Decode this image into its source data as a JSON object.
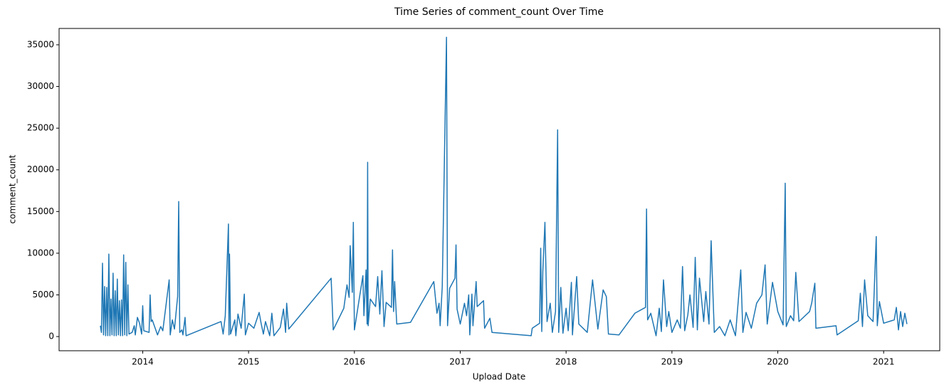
{
  "chart_data": {
    "type": "line",
    "title": "Time Series of comment_count Over Time",
    "x_label": "Upload Date",
    "y_label": "comment_count",
    "xlim": [
      2013.21,
      2021.53
    ],
    "xticks": [
      2014,
      2015,
      2016,
      2017,
      2018,
      2019,
      2020,
      2021
    ],
    "ylim": [
      -1700,
      36960
    ],
    "yticks": [
      0,
      5000,
      10000,
      15000,
      20000,
      25000,
      30000,
      35000
    ],
    "series": [
      {
        "name": "comment_count",
        "color": "#1f77b4",
        "x": [
          2013.6,
          2013.61,
          2013.62,
          2013.63,
          2013.64,
          2013.65,
          2013.66,
          2013.67,
          2013.68,
          2013.69,
          2013.7,
          2013.71,
          2013.72,
          2013.73,
          2013.74,
          2013.75,
          2013.76,
          2013.77,
          2013.78,
          2013.79,
          2013.8,
          2013.81,
          2013.82,
          2013.83,
          2013.84,
          2013.85,
          2013.86,
          2013.87,
          2013.9,
          2013.92,
          2013.93,
          2013.95,
          2013.97,
          2013.99,
          2014.0,
          2014.01,
          2014.06,
          2014.07,
          2014.08,
          2014.09,
          2014.14,
          2014.17,
          2014.19,
          2014.25,
          2014.26,
          2014.28,
          2014.3,
          2014.33,
          2014.34,
          2014.35,
          2014.37,
          2014.38,
          2014.4,
          2014.41,
          2014.74,
          2014.76,
          2014.78,
          2014.81,
          2014.815,
          2014.82,
          2014.83,
          2014.87,
          2014.88,
          2014.9,
          2014.93,
          2014.96,
          2014.97,
          2015.0,
          2015.05,
          2015.1,
          2015.12,
          2015.14,
          2015.16,
          2015.2,
          2015.22,
          2015.24,
          2015.3,
          2015.33,
          2015.35,
          2015.36,
          2015.38,
          2015.78,
          2015.8,
          2015.9,
          2015.93,
          2015.95,
          2015.96,
          2015.98,
          2015.99,
          2016.0,
          2016.08,
          2016.09,
          2016.11,
          2016.12,
          2016.125,
          2016.13,
          2016.15,
          2016.2,
          2016.22,
          2016.24,
          2016.26,
          2016.28,
          2016.3,
          2016.35,
          2016.36,
          2016.37,
          2016.38,
          2016.4,
          2016.53,
          2016.75,
          2016.78,
          2016.8,
          2016.81,
          2016.83,
          2016.87,
          2016.88,
          2016.9,
          2016.95,
          2016.96,
          2016.97,
          2017.0,
          2017.04,
          2017.06,
          2017.08,
          2017.09,
          2017.11,
          2017.12,
          2017.15,
          2017.16,
          2017.22,
          2017.23,
          2017.28,
          2017.3,
          2017.67,
          2017.68,
          2017.75,
          2017.76,
          2017.77,
          2017.78,
          2017.8,
          2017.82,
          2017.85,
          2017.87,
          2017.9,
          2017.92,
          2017.93,
          2017.95,
          2017.97,
          2018.0,
          2018.02,
          2018.05,
          2018.06,
          2018.1,
          2018.12,
          2018.2,
          2018.25,
          2018.3,
          2018.35,
          2018.38,
          2018.4,
          2018.5,
          2018.65,
          2018.75,
          2018.76,
          2018.77,
          2018.8,
          2018.85,
          2018.88,
          2018.9,
          2018.92,
          2018.95,
          2018.97,
          2019.0,
          2019.05,
          2019.08,
          2019.1,
          2019.12,
          2019.15,
          2019.17,
          2019.2,
          2019.22,
          2019.24,
          2019.26,
          2019.3,
          2019.32,
          2019.35,
          2019.37,
          2019.4,
          2019.45,
          2019.5,
          2019.55,
          2019.6,
          2019.65,
          2019.67,
          2019.7,
          2019.75,
          2019.8,
          2019.85,
          2019.88,
          2019.9,
          2019.95,
          2020.0,
          2020.05,
          2020.07,
          2020.08,
          2020.12,
          2020.15,
          2020.17,
          2020.2,
          2020.3,
          2020.32,
          2020.35,
          2020.36,
          2020.55,
          2020.56,
          2020.76,
          2020.78,
          2020.8,
          2020.82,
          2020.85,
          2020.9,
          2020.93,
          2020.94,
          2020.96,
          2021.0,
          2021.1,
          2021.12,
          2021.14,
          2021.16,
          2021.18,
          2021.2,
          2021.22
        ],
        "values": [
          1300,
          500,
          8800,
          200,
          6000,
          100,
          5900,
          100,
          9900,
          100,
          4500,
          200,
          7600,
          100,
          5500,
          100,
          6900,
          200,
          4300,
          100,
          4400,
          100,
          9800,
          200,
          8900,
          100,
          6200,
          300,
          500,
          1300,
          200,
          2300,
          1600,
          300,
          3700,
          700,
          500,
          5000,
          1800,
          2000,
          200,
          1200,
          700,
          6800,
          200,
          2000,
          900,
          4800,
          16200,
          500,
          800,
          200,
          2300,
          100,
          1800,
          300,
          2500,
          13500,
          200,
          9900,
          300,
          2000,
          100,
          2700,
          1000,
          5100,
          200,
          1600,
          1000,
          2900,
          1500,
          300,
          1800,
          100,
          2800,
          100,
          1100,
          3300,
          500,
          4000,
          900,
          7000,
          800,
          3400,
          6200,
          4700,
          10900,
          5300,
          13700,
          800,
          7300,
          2500,
          8000,
          1500,
          20900,
          1300,
          4500,
          3600,
          7200,
          2700,
          7900,
          1200,
          4100,
          3500,
          10400,
          3000,
          6600,
          1500,
          1700,
          6600,
          2800,
          4000,
          1300,
          6000,
          35900,
          1300,
          5800,
          7000,
          11000,
          3300,
          1500,
          4000,
          2500,
          5000,
          200,
          5100,
          1300,
          6600,
          3600,
          4300,
          1000,
          2200,
          500,
          100,
          1000,
          1600,
          10600,
          600,
          7800,
          13700,
          1800,
          4000,
          500,
          3000,
          24800,
          500,
          5900,
          400,
          3400,
          700,
          6500,
          200,
          7200,
          1500,
          500,
          6800,
          900,
          5600,
          4800,
          300,
          200,
          2800,
          3500,
          15300,
          2000,
          2800,
          100,
          3400,
          600,
          6800,
          1200,
          3000,
          500,
          2000,
          1000,
          8400,
          700,
          2600,
          5000,
          1100,
          9500,
          800,
          7000,
          1800,
          5400,
          1500,
          11500,
          500,
          1200,
          100,
          2000,
          100,
          8000,
          500,
          2900,
          1000,
          4000,
          5000,
          8600,
          1500,
          6500,
          3000,
          1400,
          18400,
          1200,
          2500,
          1900,
          7700,
          1800,
          3000,
          4000,
          6400,
          1000,
          1300,
          200,
          1900,
          5200,
          1200,
          6800,
          2500,
          1800,
          12000,
          1300,
          4200,
          1600,
          2000,
          3500,
          800,
          3000,
          1200,
          2800,
          1500
        ]
      }
    ]
  }
}
